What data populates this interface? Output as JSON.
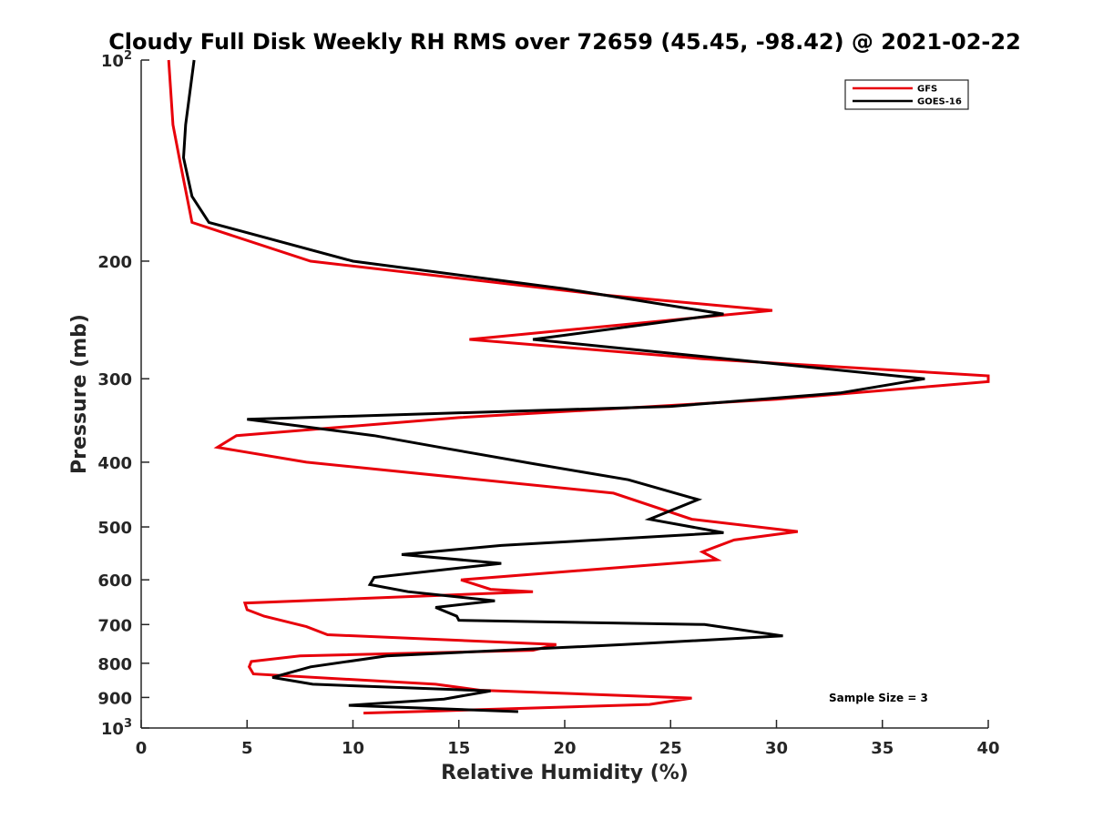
{
  "chart_data": {
    "type": "line",
    "title": "Cloudy Full Disk Weekly RH RMS over 72659 (45.45, -98.42) @ 2021-02-22",
    "xlabel": "Relative Humidity (%)",
    "ylabel": "Pressure (mb)",
    "xlim": [
      0,
      40
    ],
    "ylim": [
      100,
      1000
    ],
    "y_scale": "log",
    "y_reversed": true,
    "grid": false,
    "legend_position": "top-right",
    "x_ticks": [
      0,
      5,
      10,
      15,
      20,
      25,
      30,
      35,
      40
    ],
    "y_ticks": [
      100,
      200,
      300,
      400,
      500,
      600,
      700,
      800,
      900,
      1000
    ],
    "y_tick_labels": [
      {
        "base": "10",
        "exp": "2"
      },
      {
        "base": "200",
        "exp": ""
      },
      {
        "base": "300",
        "exp": ""
      },
      {
        "base": "400",
        "exp": ""
      },
      {
        "base": "500",
        "exp": ""
      },
      {
        "base": "600",
        "exp": ""
      },
      {
        "base": "700",
        "exp": ""
      },
      {
        "base": "800",
        "exp": ""
      },
      {
        "base": "900",
        "exp": ""
      },
      {
        "base": "10",
        "exp": "3"
      }
    ],
    "annotation": "Sample Size = 3",
    "series": [
      {
        "name": "GFS",
        "color": "#e8000b",
        "points": [
          [
            1.3,
            100
          ],
          [
            1.5,
            125
          ],
          [
            1.8,
            140
          ],
          [
            2.4,
            175
          ],
          [
            8.0,
            200
          ],
          [
            22.0,
            225
          ],
          [
            29.8,
            237
          ],
          [
            15.5,
            262
          ],
          [
            26.5,
            280
          ],
          [
            40.0,
            297
          ],
          [
            40.0,
            303
          ],
          [
            30.0,
            322
          ],
          [
            15.0,
            343
          ],
          [
            4.5,
            365
          ],
          [
            3.6,
            380
          ],
          [
            7.8,
            400
          ],
          [
            22.3,
            445
          ],
          [
            26.0,
            487
          ],
          [
            31.0,
            508
          ],
          [
            28.0,
            523
          ],
          [
            26.5,
            545
          ],
          [
            27.2,
            560
          ],
          [
            15.1,
            600
          ],
          [
            16.5,
            620
          ],
          [
            18.5,
            625
          ],
          [
            4.9,
            650
          ],
          [
            5.0,
            665
          ],
          [
            5.8,
            680
          ],
          [
            7.8,
            705
          ],
          [
            8.8,
            725
          ],
          [
            19.6,
            750
          ],
          [
            18.5,
            765
          ],
          [
            7.5,
            780
          ],
          [
            5.2,
            795
          ],
          [
            5.1,
            810
          ],
          [
            5.3,
            830
          ],
          [
            13.9,
            860
          ],
          [
            16.0,
            878
          ],
          [
            26.0,
            902
          ],
          [
            24.0,
            922
          ],
          [
            13.5,
            944
          ],
          [
            10.5,
            950
          ]
        ]
      },
      {
        "name": "GOES-16",
        "color": "#000000",
        "points": [
          [
            2.5,
            100
          ],
          [
            2.1,
            125
          ],
          [
            2.0,
            140
          ],
          [
            2.4,
            160
          ],
          [
            3.2,
            175
          ],
          [
            10.0,
            200
          ],
          [
            20.0,
            220
          ],
          [
            27.5,
            240
          ],
          [
            18.5,
            262
          ],
          [
            30.0,
            285
          ],
          [
            37.0,
            300
          ],
          [
            33.0,
            315
          ],
          [
            25.0,
            330
          ],
          [
            5.0,
            345
          ],
          [
            11.0,
            365
          ],
          [
            14.5,
            382
          ],
          [
            18.5,
            402
          ],
          [
            23.0,
            425
          ],
          [
            26.3,
            455
          ],
          [
            24.0,
            487
          ],
          [
            27.5,
            510
          ],
          [
            17.0,
            533
          ],
          [
            12.3,
            550
          ],
          [
            17.0,
            567
          ],
          [
            11.0,
            595
          ],
          [
            10.8,
            610
          ],
          [
            12.6,
            625
          ],
          [
            16.7,
            645
          ],
          [
            13.9,
            660
          ],
          [
            14.9,
            680
          ],
          [
            15.0,
            690
          ],
          [
            26.6,
            700
          ],
          [
            30.3,
            728
          ],
          [
            22.8,
            750
          ],
          [
            11.6,
            780
          ],
          [
            8.0,
            810
          ],
          [
            6.2,
            840
          ],
          [
            8.1,
            860
          ],
          [
            16.5,
            880
          ],
          [
            14.3,
            905
          ],
          [
            9.8,
            925
          ],
          [
            17.8,
            945
          ]
        ]
      }
    ]
  }
}
